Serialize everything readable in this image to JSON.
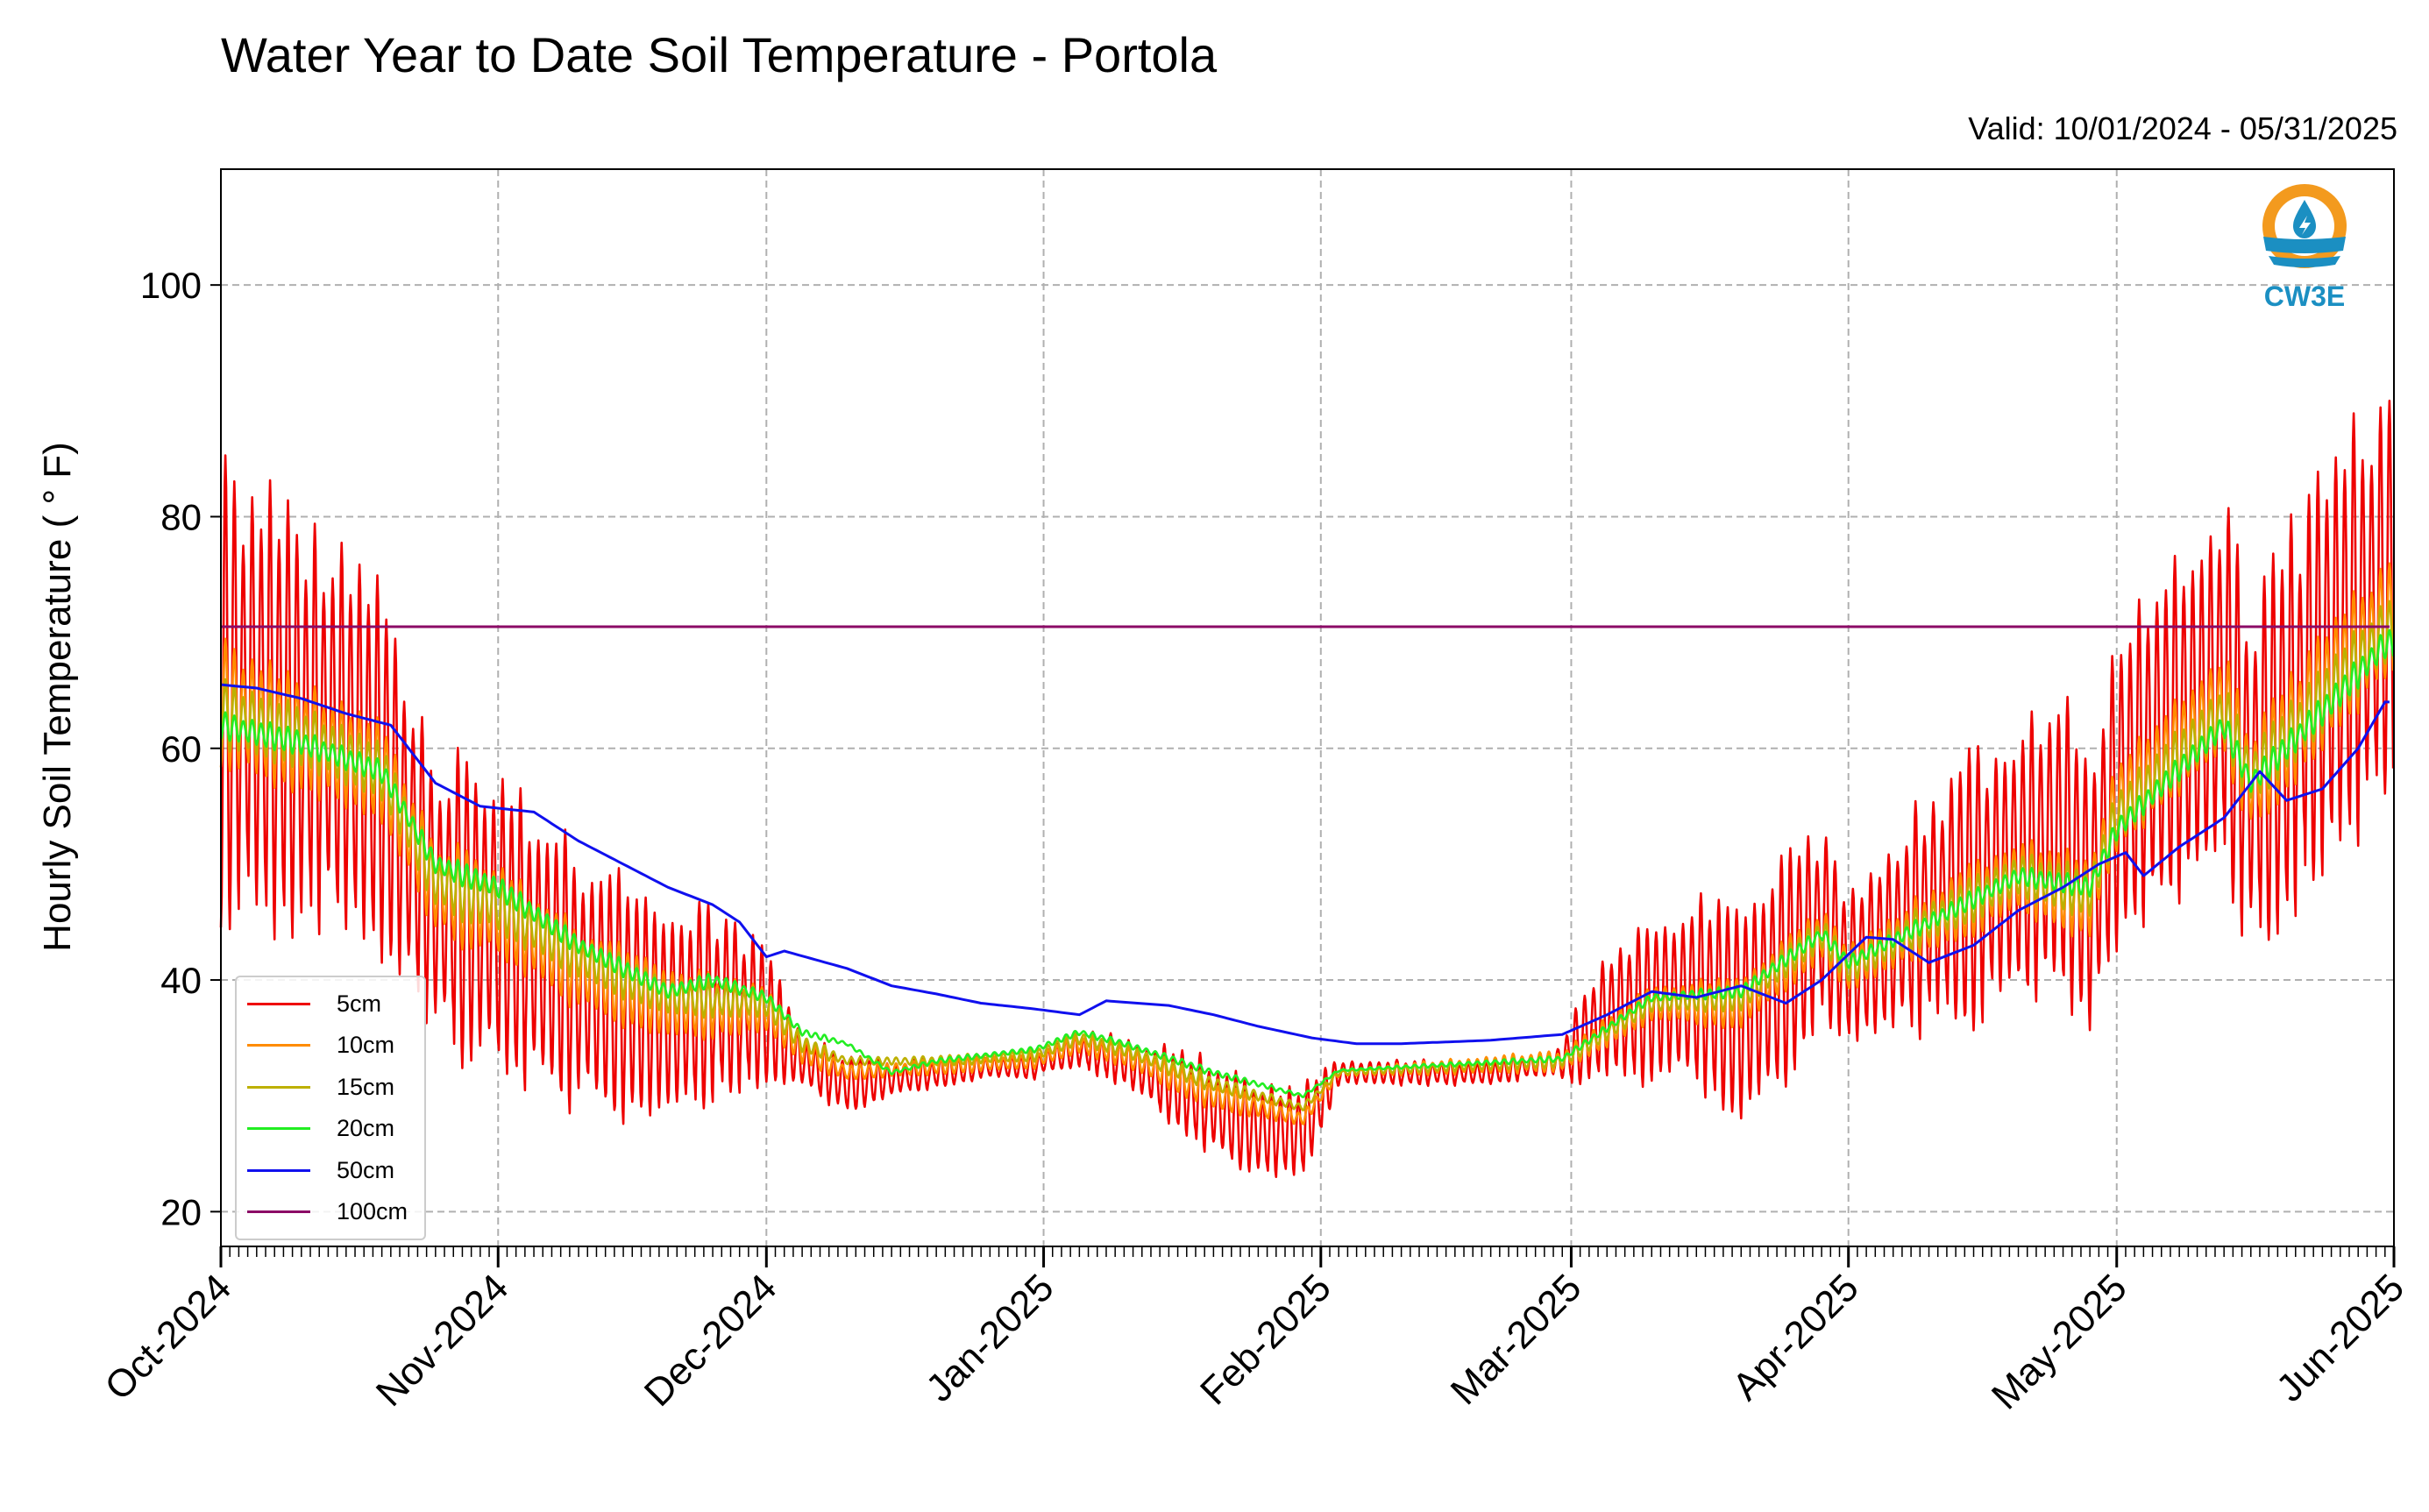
{
  "chart_data": {
    "type": "line",
    "title": "Water Year to Date Soil Temperature - Portola",
    "subtitle": "Valid: 10/01/2024 - 05/31/2025",
    "ylabel": "Hourly Soil Temperature ( ° F)",
    "xlabel": "",
    "xlim": [
      "2024-10-01",
      "2025-06-01"
    ],
    "ylim": [
      17,
      110
    ],
    "yticks": [
      20,
      40,
      60,
      80,
      100
    ],
    "xticks": [
      {
        "date": "2024-10-01",
        "label": "Oct-2024"
      },
      {
        "date": "2024-11-01",
        "label": "Nov-2024"
      },
      {
        "date": "2024-12-01",
        "label": "Dec-2024"
      },
      {
        "date": "2025-01-01",
        "label": "Jan-2025"
      },
      {
        "date": "2025-02-01",
        "label": "Feb-2025"
      },
      {
        "date": "2025-03-01",
        "label": "Mar-2025"
      },
      {
        "date": "2025-04-01",
        "label": "Apr-2025"
      },
      {
        "date": "2025-05-01",
        "label": "May-2025"
      },
      {
        "date": "2025-06-01",
        "label": "Jun-2025"
      }
    ],
    "grid": true,
    "legend_position": "lower-left",
    "series": [
      {
        "name": "5cm",
        "color": "#ee0000",
        "daily_amplitude": 1.0,
        "mean": [
          [
            "2024-10-01",
            65
          ],
          [
            "2024-10-05",
            64
          ],
          [
            "2024-10-10",
            62
          ],
          [
            "2024-10-15",
            61
          ],
          [
            "2024-10-19",
            58
          ],
          [
            "2024-10-25",
            47
          ],
          [
            "2024-11-01",
            45
          ],
          [
            "2024-11-10",
            40
          ],
          [
            "2024-11-20",
            37
          ],
          [
            "2024-11-25",
            38
          ],
          [
            "2024-12-01",
            37
          ],
          [
            "2024-12-05",
            33
          ],
          [
            "2024-12-10",
            31
          ],
          [
            "2024-12-15",
            31.5
          ],
          [
            "2024-12-20",
            32
          ],
          [
            "2024-12-25",
            32.5
          ],
          [
            "2024-12-31",
            32.5
          ],
          [
            "2025-01-01",
            33
          ],
          [
            "2025-01-05",
            34
          ],
          [
            "2025-01-10",
            33
          ],
          [
            "2025-01-15",
            31
          ],
          [
            "2025-01-20",
            29
          ],
          [
            "2025-01-25",
            27
          ],
          [
            "2025-01-30",
            27
          ],
          [
            "2025-02-03",
            32
          ],
          [
            "2025-02-10",
            32
          ],
          [
            "2025-02-20",
            32
          ],
          [
            "2025-02-28",
            33
          ],
          [
            "2025-03-05",
            37
          ],
          [
            "2025-03-10",
            38
          ],
          [
            "2025-03-15",
            39
          ],
          [
            "2025-03-20",
            37
          ],
          [
            "2025-03-25",
            41
          ],
          [
            "2025-03-29",
            45
          ],
          [
            "2025-04-01",
            41
          ],
          [
            "2025-04-05",
            43
          ],
          [
            "2025-04-10",
            46
          ],
          [
            "2025-04-15",
            48
          ],
          [
            "2025-04-20",
            50
          ],
          [
            "2025-04-25",
            52
          ],
          [
            "2025-04-28",
            47
          ],
          [
            "2025-05-01",
            56
          ],
          [
            "2025-05-05",
            60
          ],
          [
            "2025-05-10",
            63
          ],
          [
            "2025-05-13",
            66
          ],
          [
            "2025-05-16",
            57
          ],
          [
            "2025-05-20",
            62
          ],
          [
            "2025-05-25",
            68
          ],
          [
            "2025-05-31",
            73
          ]
        ],
        "half_range": [
          [
            "2024-10-01",
            18
          ],
          [
            "2024-10-20",
            16
          ],
          [
            "2024-10-25",
            12
          ],
          [
            "2024-11-01",
            12
          ],
          [
            "2024-11-20",
            9
          ],
          [
            "2024-12-01",
            6
          ],
          [
            "2024-12-05",
            2
          ],
          [
            "2024-12-10",
            2.5
          ],
          [
            "2024-12-15",
            1.5
          ],
          [
            "2024-12-25",
            1
          ],
          [
            "2025-01-01",
            1
          ],
          [
            "2025-01-10",
            2
          ],
          [
            "2025-01-20",
            4
          ],
          [
            "2025-01-30",
            4
          ],
          [
            "2025-02-03",
            1
          ],
          [
            "2025-02-27",
            1
          ],
          [
            "2025-03-01",
            3
          ],
          [
            "2025-03-10",
            7
          ],
          [
            "2025-03-25",
            9
          ],
          [
            "2025-04-01",
            7
          ],
          [
            "2025-04-15",
            11
          ],
          [
            "2025-05-01",
            13
          ],
          [
            "2025-05-15",
            15
          ],
          [
            "2025-05-31",
            17
          ]
        ]
      },
      {
        "name": "10cm",
        "color": "#ff8c00",
        "daily_amplitude": 0.62,
        "mean": [
          [
            "2024-10-01",
            64
          ],
          [
            "2024-10-10",
            61
          ],
          [
            "2024-10-19",
            58
          ],
          [
            "2024-10-25",
            48
          ],
          [
            "2024-11-01",
            46
          ],
          [
            "2024-11-10",
            41
          ],
          [
            "2024-11-20",
            38
          ],
          [
            "2024-12-01",
            37.5
          ],
          [
            "2024-12-05",
            34
          ],
          [
            "2024-12-10",
            32
          ],
          [
            "2024-12-20",
            32.5
          ],
          [
            "2024-12-31",
            33
          ],
          [
            "2025-01-05",
            34.5
          ],
          [
            "2025-01-10",
            33.5
          ],
          [
            "2025-01-20",
            30
          ],
          [
            "2025-01-30",
            28
          ],
          [
            "2025-02-03",
            32
          ],
          [
            "2025-02-28",
            33
          ],
          [
            "2025-03-10",
            38
          ],
          [
            "2025-03-20",
            38
          ],
          [
            "2025-03-29",
            44
          ],
          [
            "2025-04-01",
            41
          ],
          [
            "2025-04-10",
            45
          ],
          [
            "2025-04-20",
            49
          ],
          [
            "2025-04-28",
            47
          ],
          [
            "2025-05-01",
            55
          ],
          [
            "2025-05-13",
            64
          ],
          [
            "2025-05-16",
            57
          ],
          [
            "2025-05-25",
            66
          ],
          [
            "2025-05-31",
            71
          ]
        ],
        "half_range": [
          [
            "2024-10-01",
            8
          ],
          [
            "2024-10-20",
            7
          ],
          [
            "2024-11-01",
            6
          ],
          [
            "2024-11-20",
            5
          ],
          [
            "2024-12-01",
            3
          ],
          [
            "2024-12-10",
            1
          ],
          [
            "2025-01-01",
            1
          ],
          [
            "2025-01-20",
            2
          ],
          [
            "2025-02-03",
            0.5
          ],
          [
            "2025-03-01",
            1.5
          ],
          [
            "2025-03-15",
            3
          ],
          [
            "2025-04-01",
            3.5
          ],
          [
            "2025-05-01",
            6
          ],
          [
            "2025-05-31",
            8
          ]
        ]
      },
      {
        "name": "15cm",
        "color": "#bdb000",
        "daily_amplitude": 0.45,
        "mean": [
          [
            "2024-10-01",
            63
          ],
          [
            "2024-10-10",
            61
          ],
          [
            "2024-10-19",
            58
          ],
          [
            "2024-10-25",
            48.5
          ],
          [
            "2024-11-01",
            46.5
          ],
          [
            "2024-11-10",
            42
          ],
          [
            "2024-11-20",
            38.5
          ],
          [
            "2024-12-01",
            38
          ],
          [
            "2024-12-05",
            34.5
          ],
          [
            "2024-12-10",
            33
          ],
          [
            "2024-12-20",
            33
          ],
          [
            "2024-12-31",
            33.5
          ],
          [
            "2025-01-05",
            35
          ],
          [
            "2025-01-10",
            34
          ],
          [
            "2025-01-20",
            31
          ],
          [
            "2025-01-30",
            29
          ],
          [
            "2025-02-03",
            32
          ],
          [
            "2025-02-28",
            33
          ],
          [
            "2025-03-10",
            38
          ],
          [
            "2025-03-20",
            38.5
          ],
          [
            "2025-03-29",
            44
          ],
          [
            "2025-04-01",
            41
          ],
          [
            "2025-04-10",
            45
          ],
          [
            "2025-04-20",
            49
          ],
          [
            "2025-04-28",
            47.5
          ],
          [
            "2025-05-01",
            54
          ],
          [
            "2025-05-13",
            63
          ],
          [
            "2025-05-16",
            57.5
          ],
          [
            "2025-05-25",
            65
          ],
          [
            "2025-05-31",
            70
          ]
        ],
        "half_range": [
          [
            "2024-10-01",
            6
          ],
          [
            "2024-11-01",
            5
          ],
          [
            "2024-12-01",
            2.5
          ],
          [
            "2024-12-10",
            0.7
          ],
          [
            "2025-01-20",
            1.5
          ],
          [
            "2025-02-03",
            0.4
          ],
          [
            "2025-03-01",
            1.2
          ],
          [
            "2025-04-01",
            3
          ],
          [
            "2025-05-01",
            5
          ],
          [
            "2025-05-31",
            6
          ]
        ]
      },
      {
        "name": "20cm",
        "color": "#22ee22",
        "daily_amplitude": 0.3,
        "mean": [
          [
            "2024-10-01",
            62
          ],
          [
            "2024-10-10",
            60.5
          ],
          [
            "2024-10-19",
            58
          ],
          [
            "2024-10-25",
            50
          ],
          [
            "2024-11-01",
            48
          ],
          [
            "2024-11-10",
            43
          ],
          [
            "2024-11-20",
            39
          ],
          [
            "2024-11-25",
            40
          ],
          [
            "2024-12-01",
            38.5
          ],
          [
            "2024-12-05",
            35.5
          ],
          [
            "2024-12-10",
            34.5
          ],
          [
            "2024-12-15",
            32
          ],
          [
            "2024-12-20",
            33
          ],
          [
            "2024-12-31",
            34
          ],
          [
            "2025-01-05",
            35.5
          ],
          [
            "2025-01-10",
            34.5
          ],
          [
            "2025-01-20",
            32
          ],
          [
            "2025-01-30",
            30
          ],
          [
            "2025-02-03",
            32.2
          ],
          [
            "2025-02-28",
            33.2
          ],
          [
            "2025-03-10",
            38.5
          ],
          [
            "2025-03-20",
            39
          ],
          [
            "2025-03-29",
            44
          ],
          [
            "2025-04-01",
            41.5
          ],
          [
            "2025-04-10",
            45
          ],
          [
            "2025-04-20",
            49
          ],
          [
            "2025-04-28",
            48
          ],
          [
            "2025-05-01",
            53
          ],
          [
            "2025-05-13",
            62
          ],
          [
            "2025-05-16",
            57
          ],
          [
            "2025-05-25",
            64
          ],
          [
            "2025-05-31",
            69
          ]
        ],
        "half_range": [
          [
            "2024-10-01",
            3.5
          ],
          [
            "2024-11-01",
            3
          ],
          [
            "2024-12-01",
            1.5
          ],
          [
            "2024-12-10",
            0.5
          ],
          [
            "2025-01-20",
            1
          ],
          [
            "2025-02-03",
            0.3
          ],
          [
            "2025-03-01",
            0.8
          ],
          [
            "2025-04-01",
            2
          ],
          [
            "2025-05-01",
            3
          ],
          [
            "2025-05-31",
            4
          ]
        ]
      },
      {
        "name": "50cm",
        "color": "#1010ee",
        "daily_amplitude": 0,
        "mean": [
          [
            "2024-10-01",
            65.5
          ],
          [
            "2024-10-05",
            65.2
          ],
          [
            "2024-10-10",
            64.3
          ],
          [
            "2024-10-15",
            63
          ],
          [
            "2024-10-20",
            62
          ],
          [
            "2024-10-25",
            57
          ],
          [
            "2024-10-30",
            55
          ],
          [
            "2024-11-05",
            54.5
          ],
          [
            "2024-11-10",
            52
          ],
          [
            "2024-11-15",
            50
          ],
          [
            "2024-11-20",
            48
          ],
          [
            "2024-11-25",
            46.5
          ],
          [
            "2024-11-28",
            45
          ],
          [
            "2024-12-01",
            42
          ],
          [
            "2024-12-03",
            42.5
          ],
          [
            "2024-12-10",
            41
          ],
          [
            "2024-12-15",
            39.5
          ],
          [
            "2024-12-20",
            38.8
          ],
          [
            "2024-12-25",
            38
          ],
          [
            "2024-12-31",
            37.5
          ],
          [
            "2025-01-05",
            37
          ],
          [
            "2025-01-08",
            38.2
          ],
          [
            "2025-01-15",
            37.8
          ],
          [
            "2025-01-20",
            37
          ],
          [
            "2025-01-25",
            36
          ],
          [
            "2025-01-31",
            35
          ],
          [
            "2025-02-05",
            34.5
          ],
          [
            "2025-02-10",
            34.5
          ],
          [
            "2025-02-20",
            34.8
          ],
          [
            "2025-02-28",
            35.3
          ],
          [
            "2025-03-05",
            37
          ],
          [
            "2025-03-10",
            39
          ],
          [
            "2025-03-15",
            38.5
          ],
          [
            "2025-03-20",
            39.5
          ],
          [
            "2025-03-25",
            38
          ],
          [
            "2025-03-29",
            40
          ],
          [
            "2025-04-03",
            43.7
          ],
          [
            "2025-04-06",
            43.5
          ],
          [
            "2025-04-10",
            41.5
          ],
          [
            "2025-04-15",
            43
          ],
          [
            "2025-04-20",
            46
          ],
          [
            "2025-04-25",
            48
          ],
          [
            "2025-04-29",
            50
          ],
          [
            "2025-05-02",
            51
          ],
          [
            "2025-05-04",
            49
          ],
          [
            "2025-05-08",
            51.5
          ],
          [
            "2025-05-13",
            54
          ],
          [
            "2025-05-17",
            58
          ],
          [
            "2025-05-20",
            55.5
          ],
          [
            "2025-05-24",
            56.5
          ],
          [
            "2025-05-28",
            60
          ],
          [
            "2025-05-31",
            64
          ]
        ],
        "half_range": [
          [
            "2024-10-01",
            0
          ]
        ]
      },
      {
        "name": "100cm",
        "color": "#8b0a66",
        "daily_amplitude": 0,
        "mean": [
          [
            "2024-10-01",
            70.5
          ],
          [
            "2025-05-31",
            70.5
          ]
        ],
        "half_range": [
          [
            "2024-10-01",
            0
          ]
        ]
      }
    ]
  },
  "logo": {
    "text": "CW3E",
    "colors": {
      "sun": "#f39a1e",
      "water": "#1b8fc2"
    }
  }
}
